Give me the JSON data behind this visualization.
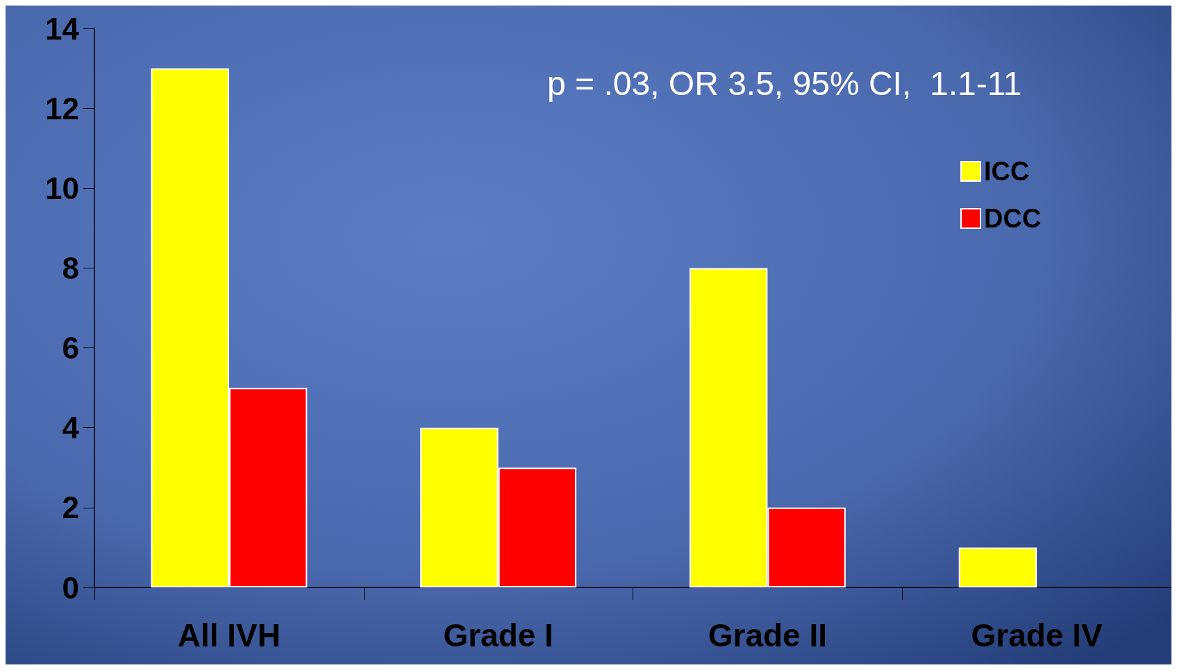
{
  "chart_data": {
    "type": "bar",
    "categories": [
      "All IVH",
      "Grade I",
      "Grade II",
      "Grade IV"
    ],
    "series": [
      {
        "name": "ICC",
        "color": "#ffff00",
        "values": [
          13,
          4,
          8,
          1
        ]
      },
      {
        "name": "DCC",
        "color": "#ff0000",
        "values": [
          5,
          3,
          2,
          null
        ]
      }
    ],
    "ylim": [
      0,
      14
    ],
    "yticks": [
      0,
      2,
      4,
      6,
      8,
      10,
      12,
      14
    ],
    "grid": false,
    "legend": "top right",
    "annotations": [
      "p = .03, OR 3.5, 95% CI,  1.1-11"
    ]
  }
}
